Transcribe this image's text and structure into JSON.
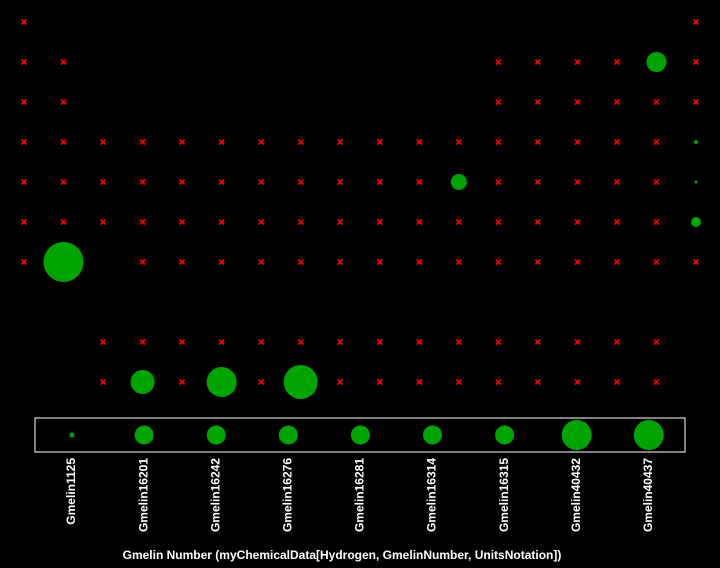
{
  "chart_data": {
    "type": "bubble",
    "x_label": "Gmelin Number (myChemicalData[Hydrogen, GmelinNumber, UnitsNotation])",
    "color": "#00a400",
    "missing_color": "#ff0000",
    "rows": [
      {
        "y": 1,
        "x": [
          1,
          18
        ],
        "values": [
          null,
          null
        ]
      },
      {
        "y": 2,
        "x": [
          1,
          2,
          13,
          14,
          15,
          16,
          17,
          18
        ],
        "values": [
          null,
          null,
          null,
          null,
          null,
          null,
          10100,
          null
        ]
      },
      {
        "y": 3,
        "x": [
          1,
          2,
          13,
          14,
          15,
          16,
          17,
          18
        ],
        "values": [
          null,
          null,
          null,
          null,
          null,
          null,
          null,
          null
        ]
      },
      {
        "y": 4,
        "x": [
          1,
          2,
          3,
          4,
          5,
          6,
          7,
          8,
          9,
          10,
          11,
          12,
          13,
          14,
          15,
          16,
          17,
          18
        ],
        "values": [
          null,
          null,
          null,
          null,
          null,
          null,
          null,
          null,
          null,
          null,
          null,
          null,
          null,
          null,
          null,
          null,
          null,
          400
        ]
      },
      {
        "y": 5,
        "x": [
          1,
          2,
          3,
          4,
          5,
          6,
          7,
          8,
          9,
          10,
          11,
          12,
          13,
          14,
          15,
          16,
          17,
          18
        ],
        "values": [
          null,
          null,
          null,
          null,
          null,
          null,
          null,
          null,
          null,
          null,
          null,
          6470,
          null,
          null,
          null,
          null,
          null,
          230
        ]
      },
      {
        "y": 6,
        "x": [
          1,
          2,
          3,
          4,
          5,
          6,
          7,
          8,
          9,
          10,
          11,
          12,
          13,
          14,
          15,
          16,
          17,
          18
        ],
        "values": [
          null,
          null,
          null,
          null,
          null,
          null,
          null,
          null,
          null,
          null,
          null,
          null,
          null,
          null,
          null,
          null,
          null,
          2530
        ]
      },
      {
        "y": 7,
        "x": [
          1,
          2,
          4,
          5,
          6,
          7,
          8,
          9,
          10,
          11,
          12,
          13,
          14,
          15,
          16,
          17,
          18
        ],
        "values": [
          null,
          40437,
          null,
          null,
          null,
          null,
          null,
          null,
          null,
          null,
          null,
          null,
          null,
          null,
          null,
          null,
          null
        ]
      },
      {
        "y": 9,
        "x": [
          3,
          4,
          5,
          6,
          7,
          8,
          9,
          10,
          11,
          12,
          13,
          14,
          15,
          16,
          17
        ],
        "values": [
          null,
          null,
          null,
          null,
          null,
          null,
          null,
          null,
          null,
          null,
          null,
          null,
          null,
          null,
          null
        ]
      },
      {
        "y": 10,
        "x": [
          3,
          4,
          5,
          6,
          7,
          8,
          9,
          10,
          11,
          12,
          13,
          14,
          15,
          16,
          17
        ],
        "values": [
          null,
          14560,
          null,
          22750,
          null,
          29200,
          null,
          null,
          null,
          null,
          null,
          null,
          null,
          null,
          null
        ]
      }
    ],
    "legend": [
      {
        "label": "Gmelin1125",
        "value": 1125
      },
      {
        "label": "Gmelin16201",
        "value": 16201
      },
      {
        "label": "Gmelin16242",
        "value": 16242
      },
      {
        "label": "Gmelin16276",
        "value": 16276
      },
      {
        "label": "Gmelin16281",
        "value": 16281
      },
      {
        "label": "Gmelin16314",
        "value": 16314
      },
      {
        "label": "Gmelin16315",
        "value": 16315
      },
      {
        "label": "Gmelin40432",
        "value": 40432
      },
      {
        "label": "Gmelin40437",
        "value": 40437
      }
    ]
  }
}
